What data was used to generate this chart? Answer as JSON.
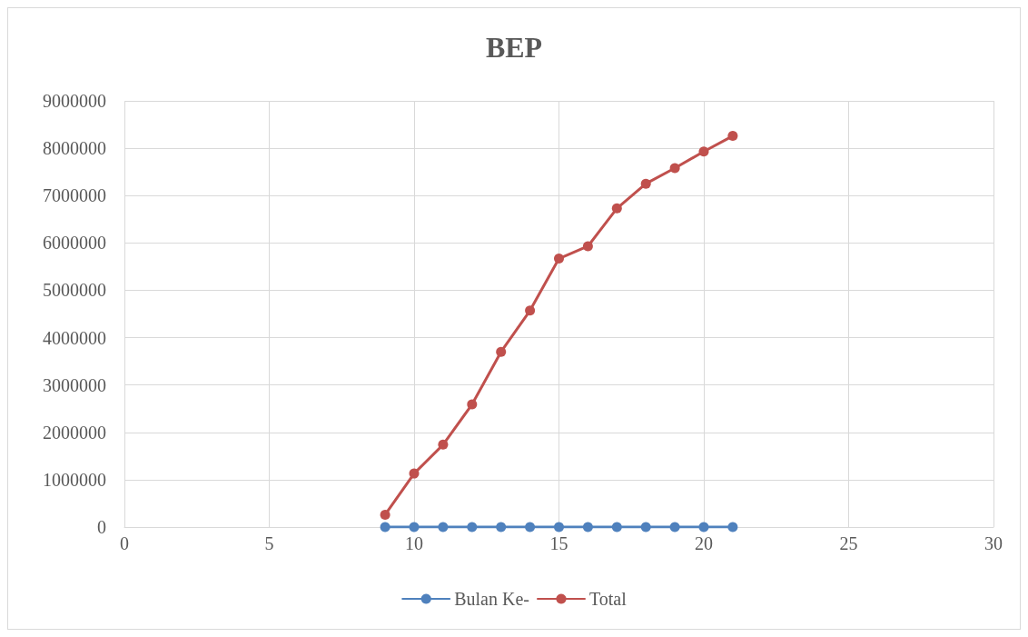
{
  "chart_data": {
    "type": "line",
    "title": "BEP",
    "x": [
      9,
      10,
      11,
      12,
      13,
      14,
      15,
      16,
      17,
      18,
      19,
      20,
      21
    ],
    "series": [
      {
        "name": "Bulan Ke-",
        "color": "#4f81bd",
        "values": [
          0,
          0,
          0,
          0,
          0,
          0,
          0,
          0,
          0,
          0,
          0,
          0,
          0
        ]
      },
      {
        "name": "Total",
        "color": "#c0504d",
        "values": [
          260000,
          1130000,
          1740000,
          2590000,
          3700000,
          4570000,
          5670000,
          5930000,
          6730000,
          7250000,
          7580000,
          7930000,
          8260000
        ]
      }
    ],
    "xlim": [
      0,
      30
    ],
    "xticks": [
      0,
      5,
      10,
      15,
      20,
      25,
      30
    ],
    "ylim": [
      0,
      9000000
    ],
    "yticks": [
      0,
      1000000,
      2000000,
      3000000,
      4000000,
      5000000,
      6000000,
      7000000,
      8000000,
      9000000
    ],
    "grid": true,
    "legend": "bottom",
    "marker": "circle",
    "line_style": "solid"
  }
}
